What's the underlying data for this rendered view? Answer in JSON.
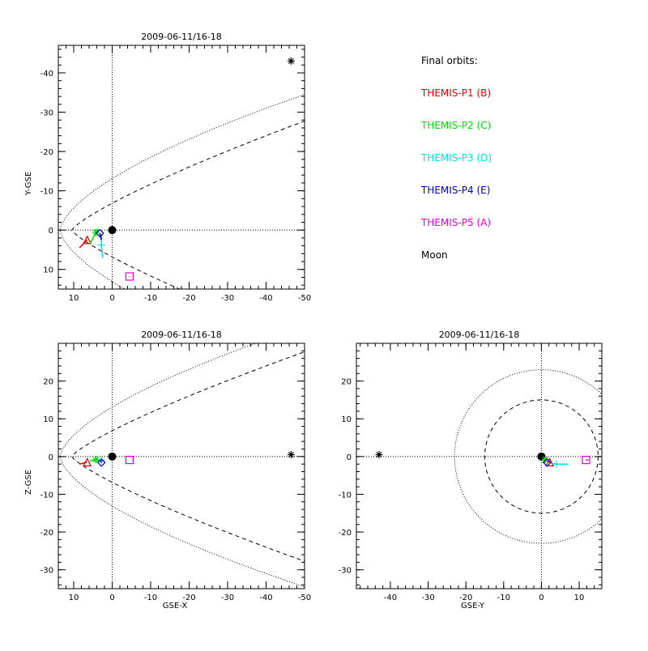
{
  "colors": {
    "axis": "#000000",
    "p1": "#e00000",
    "p2": "#00e000",
    "p3": "#00e0e0",
    "p4": "#0000c0",
    "p5": "#e000e0",
    "moon": "#000000"
  },
  "legend": {
    "title": "Final orbits:",
    "items": [
      {
        "label": "THEMIS-P1 (B)",
        "color": "#e00000"
      },
      {
        "label": "THEMIS-P2 (C)",
        "color": "#00e000"
      },
      {
        "label": "THEMIS-P3 (D)",
        "color": "#00e0e0"
      },
      {
        "label": "THEMIS-P4 (E)",
        "color": "#0000c0"
      },
      {
        "label": "THEMIS-P5 (A)",
        "color": "#e000e0"
      },
      {
        "label": "Moon",
        "color": "#000000"
      }
    ]
  },
  "chart_data": [
    {
      "type": "scatter",
      "title": "2009-06-11/16-18",
      "xlabel": "",
      "ylabel": "Y-GSE",
      "xlim": [
        14,
        -50
      ],
      "ylim": [
        15,
        -47
      ],
      "xticks": [
        10,
        0,
        -10,
        -20,
        -30,
        -40,
        -50
      ],
      "yticks": [
        -40,
        -30,
        -20,
        -10,
        0,
        10
      ],
      "markers": {
        "earth": {
          "x": 0,
          "y": 0
        },
        "p1": {
          "x": 6.5,
          "y": 2.5,
          "symbol": "triangle",
          "track": [
            [
              8.5,
              4.5
            ],
            [
              6.5,
              2.5
            ]
          ]
        },
        "p2": {
          "x": 4.2,
          "y": 0.6,
          "symbol": "asterisk",
          "track": [
            [
              5.8,
              3.5
            ],
            [
              4.2,
              0.6
            ],
            [
              3.6,
              -0.3
            ]
          ]
        },
        "p3": {
          "x": 2.8,
          "y": 3.8,
          "symbol": "plus",
          "track": [
            [
              2.8,
              1.0
            ],
            [
              2.8,
              3.8
            ],
            [
              2.5,
              7.0
            ]
          ]
        },
        "p4": {
          "x": 3.2,
          "y": 0.8,
          "symbol": "diamond",
          "track": [
            [
              3.2,
              0.8
            ],
            [
              2.8,
              2.5
            ]
          ]
        },
        "p5": {
          "x": -4.5,
          "y": 11.8,
          "symbol": "square",
          "track": [
            [
              -4.5,
              11.8
            ],
            [
              -4.5,
              12.0
            ]
          ]
        },
        "moon": {
          "x": -46.5,
          "y": -43.0,
          "symbol": "asterisk"
        }
      }
    },
    {
      "type": "scatter",
      "title": "2009-06-11/16-18",
      "xlabel": "GSE-X",
      "ylabel": "Z-GSE",
      "xlim": [
        14,
        -50
      ],
      "ylim": [
        -35,
        30
      ],
      "xticks": [
        10,
        0,
        -10,
        -20,
        -30,
        -40,
        -50
      ],
      "yticks": [
        -30,
        -20,
        -10,
        0,
        10,
        20
      ],
      "markers": {
        "earth": {
          "x": 0,
          "y": 0
        },
        "p1": {
          "x": 6.5,
          "y": -1.5,
          "symbol": "triangle",
          "track": [
            [
              8.5,
              -2.0
            ],
            [
              6.5,
              -1.5
            ]
          ]
        },
        "p2": {
          "x": 4.2,
          "y": -0.8,
          "symbol": "asterisk",
          "track": [
            [
              5.8,
              -1.2
            ],
            [
              4.2,
              -0.8
            ]
          ]
        },
        "p3": {
          "x": 2.8,
          "y": -1.0,
          "symbol": "plus",
          "track": [
            [
              3.0,
              -1.0
            ],
            [
              2.3,
              -1.2
            ]
          ]
        },
        "p4": {
          "x": 2.8,
          "y": -1.6,
          "symbol": "diamond",
          "track": [
            [
              3.2,
              -0.9
            ],
            [
              2.8,
              -1.6
            ]
          ]
        },
        "p5": {
          "x": -4.5,
          "y": -0.9,
          "symbol": "square",
          "track": []
        },
        "moon": {
          "x": -46.5,
          "y": 0.5,
          "symbol": "asterisk"
        }
      }
    },
    {
      "type": "scatter",
      "title": "2009-06-11/16-18",
      "xlabel": "GSE-Y",
      "ylabel": "",
      "xlim": [
        -49,
        16
      ],
      "ylim": [
        -35,
        30
      ],
      "xticks": [
        -40,
        -30,
        -20,
        -10,
        0,
        10
      ],
      "yticks": [
        -30,
        -20,
        -10,
        0,
        10,
        20
      ],
      "markers": {
        "earth": {
          "x": 0,
          "y": 0
        },
        "p1": {
          "x": 2.2,
          "y": -1.5,
          "symbol": "triangle",
          "track": [
            [
              1.5,
              -1.3
            ],
            [
              2.2,
              -1.5
            ]
          ]
        },
        "p2": {
          "x": 1.0,
          "y": -0.8,
          "symbol": "asterisk",
          "track": [
            [
              0.6,
              -0.4
            ],
            [
              1.0,
              -0.8
            ]
          ]
        },
        "p3": {
          "x": 4.0,
          "y": -2.0,
          "symbol": "plus",
          "track": [
            [
              2.5,
              -1.8
            ],
            [
              4.0,
              -2.0
            ],
            [
              7.0,
              -2.0
            ]
          ]
        },
        "p4": {
          "x": 1.5,
          "y": -1.6,
          "symbol": "diamond",
          "track": []
        },
        "p5": {
          "x": 11.8,
          "y": -0.9,
          "symbol": "square",
          "track": [
            [
              11.8,
              -0.9
            ],
            [
              12.5,
              -0.9
            ]
          ]
        },
        "moon": {
          "x": -43.0,
          "y": 0.5,
          "symbol": "asterisk"
        }
      }
    }
  ]
}
